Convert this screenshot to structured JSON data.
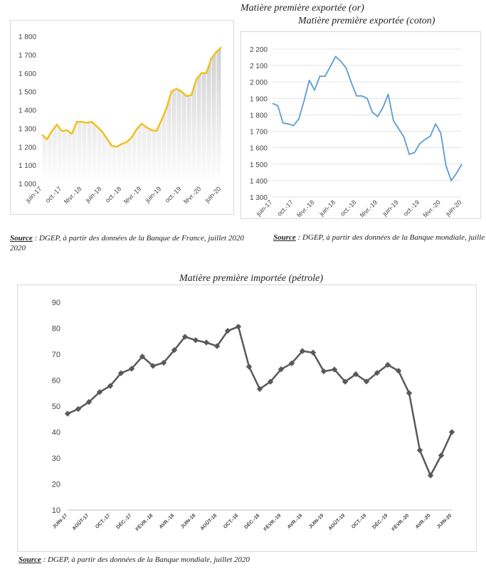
{
  "chart_data": [
    {
      "type": "area",
      "title": "Matière première exportée (or)",
      "y_tick_labels": [
        "1 000",
        "1 100",
        "1 200",
        "1 300",
        "1 400",
        "1 500",
        "1 600",
        "1 700",
        "1 800"
      ],
      "ylim": [
        1000,
        1800
      ],
      "x_tick_labels": [
        "juin-17",
        "oct.-17",
        "févr.-18",
        "juin-18",
        "oct.-18",
        "févr.-19",
        "juin-19",
        "oct.-19",
        "févr.-20",
        "juin-20"
      ],
      "colors": {
        "line": "#f0c020",
        "fill_top": "#cfcfcf",
        "fill_bottom": "#ffffff"
      },
      "grid": false,
      "values": [
        1265,
        1240,
        1285,
        1320,
        1285,
        1290,
        1270,
        1335,
        1335,
        1330,
        1335,
        1310,
        1285,
        1245,
        1205,
        1200,
        1215,
        1225,
        1250,
        1295,
        1325,
        1305,
        1290,
        1285,
        1345,
        1410,
        1500,
        1515,
        1500,
        1475,
        1480,
        1565,
        1600,
        1600,
        1680,
        1715,
        1740
      ]
    },
    {
      "type": "line",
      "title": "Matière première exportée (coton)",
      "y_tick_labels": [
        "1 300",
        "1 400",
        "1 500",
        "1 600",
        "1 700",
        "1 800",
        "1 900",
        "2 000",
        "2 100",
        "2 200"
      ],
      "ylim": [
        1300,
        2200
      ],
      "x_tick_labels": [
        "juin-17",
        "oct.-17",
        "févr.-18",
        "juin-18",
        "oct.-18",
        "févr.-19",
        "juin-19",
        "oct.-19",
        "févr.-20",
        "juin-20"
      ],
      "colors": {
        "line": "#5b9bd5",
        "grid": "#e3e3e3"
      },
      "grid": true,
      "values": [
        1870,
        1855,
        1750,
        1745,
        1735,
        1775,
        1885,
        2010,
        1950,
        2035,
        2035,
        2095,
        2155,
        2125,
        2085,
        1995,
        1915,
        1915,
        1900,
        1815,
        1790,
        1845,
        1925,
        1765,
        1715,
        1665,
        1560,
        1570,
        1625,
        1650,
        1670,
        1745,
        1690,
        1490,
        1400,
        1445,
        1500
      ]
    },
    {
      "type": "line",
      "title": "Matière première importée (pétrole)",
      "y_tick_labels": [
        "10",
        "20",
        "30",
        "40",
        "50",
        "60",
        "70",
        "80",
        "90"
      ],
      "ylim": [
        10,
        90
      ],
      "x_tick_labels": [
        "JUIN-17",
        "AOÛT-17",
        "OCT.-17",
        "DÉC.-17",
        "FÉVR.-18",
        "AVR.-18",
        "JUIN-18",
        "AOÛT-18",
        "OCT.-18",
        "DÉC.-18",
        "FÉVR.-19",
        "AVR.-19",
        "JUIN-19",
        "AOÛT-19",
        "OCT.-19",
        "DÉC.-19",
        "FÉVR.-20",
        "AVR.-20",
        "JUIN-20"
      ],
      "colors": {
        "line": "#595959",
        "marker": "#595959"
      },
      "marker": "diamond",
      "grid": false,
      "values": [
        47.1,
        48.9,
        51.6,
        55.4,
        57.8,
        62.7,
        64.4,
        69.1,
        65.5,
        66.7,
        71.6,
        76.7,
        75.4,
        74.5,
        73.1,
        79,
        80.6,
        65.2,
        56.6,
        59.4,
        64.2,
        66.5,
        71.2,
        70.6,
        63.4,
        64.1,
        59.4,
        62.3,
        59.5,
        62.8,
        65.9,
        63.6,
        55,
        33,
        23.3,
        31,
        40
      ]
    }
  ],
  "sources": {
    "label": "Source",
    "gold": " : DGEP, à partir des données de la Banque de France, juillet 2020",
    "gold_wrap": "2020",
    "coton": " : DGEP, à partir des données de la Banque mondiale, juillet",
    "petrole": " : DGEP, à partir des données de la Banque mondiale, juillet 2020"
  }
}
